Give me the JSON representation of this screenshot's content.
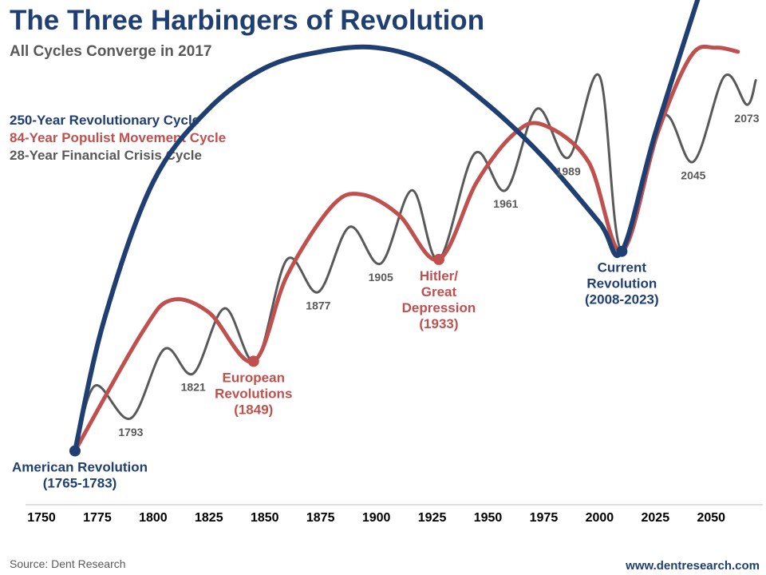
{
  "header": {
    "title": "The Three Harbingers of Revolution",
    "subtitle": "All Cycles Converge in 2017"
  },
  "footer": {
    "source": "Source: Dent Research",
    "website": "www.dentresearch.com"
  },
  "chart_data": {
    "type": "line",
    "title": "The Three Harbingers of Revolution",
    "subtitle": "All Cycles Converge in 2017",
    "xlabel": "",
    "ylabel": "",
    "xlim": [
      1750,
      2066
    ],
    "ylim": [
      0,
      100
    ],
    "x_ticks": [
      1750,
      1775,
      1800,
      1825,
      1850,
      1875,
      1900,
      1925,
      1950,
      1975,
      2000,
      2025,
      2050
    ],
    "grid": false,
    "legend_position": "top-left",
    "series": [
      {
        "name": "250-Year Revolutionary Cycle",
        "color": "#1f3f73",
        "points": [
          {
            "x": 1765,
            "y": 4
          },
          {
            "x": 1778,
            "y": 36
          },
          {
            "x": 1800,
            "y": 70
          },
          {
            "x": 1825,
            "y": 88
          },
          {
            "x": 1850,
            "y": 98
          },
          {
            "x": 1875,
            "y": 102
          },
          {
            "x": 1900,
            "y": 103
          },
          {
            "x": 1925,
            "y": 99
          },
          {
            "x": 1950,
            "y": 89
          },
          {
            "x": 1975,
            "y": 76
          },
          {
            "x": 2000,
            "y": 60
          },
          {
            "x": 2010,
            "y": 53
          },
          {
            "x": 2025,
            "y": 82
          },
          {
            "x": 2047,
            "y": 120
          }
        ]
      },
      {
        "name": "84-Year Populist Movement Cycle",
        "color": "#c0504d",
        "points": [
          {
            "x": 1765,
            "y": 4
          },
          {
            "x": 1795,
            "y": 33
          },
          {
            "x": 1808,
            "y": 41
          },
          {
            "x": 1825,
            "y": 38
          },
          {
            "x": 1845,
            "y": 26
          },
          {
            "x": 1860,
            "y": 47
          },
          {
            "x": 1880,
            "y": 64
          },
          {
            "x": 1893,
            "y": 67
          },
          {
            "x": 1910,
            "y": 62
          },
          {
            "x": 1928,
            "y": 51
          },
          {
            "x": 1945,
            "y": 70
          },
          {
            "x": 1962,
            "y": 82
          },
          {
            "x": 1975,
            "y": 84
          },
          {
            "x": 1995,
            "y": 75
          },
          {
            "x": 2010,
            "y": 53
          },
          {
            "x": 2026,
            "y": 82
          },
          {
            "x": 2041,
            "y": 101
          },
          {
            "x": 2052,
            "y": 103
          },
          {
            "x": 2062,
            "y": 102
          }
        ]
      },
      {
        "name": "28-Year Financial Crisis Cycle",
        "color": "#595959",
        "points": [
          {
            "x": 1765,
            "y": 4
          },
          {
            "x": 1774,
            "y": 20
          },
          {
            "x": 1790,
            "y": 12
          },
          {
            "x": 1805,
            "y": 29
          },
          {
            "x": 1818,
            "y": 23
          },
          {
            "x": 1832,
            "y": 39
          },
          {
            "x": 1846,
            "y": 26
          },
          {
            "x": 1860,
            "y": 51
          },
          {
            "x": 1874,
            "y": 43
          },
          {
            "x": 1888,
            "y": 59
          },
          {
            "x": 1902,
            "y": 50
          },
          {
            "x": 1916,
            "y": 68
          },
          {
            "x": 1928,
            "y": 51
          },
          {
            "x": 1944,
            "y": 77
          },
          {
            "x": 1958,
            "y": 68
          },
          {
            "x": 1972,
            "y": 88
          },
          {
            "x": 1986,
            "y": 76
          },
          {
            "x": 2000,
            "y": 96
          },
          {
            "x": 2010,
            "y": 53
          },
          {
            "x": 2028,
            "y": 86
          },
          {
            "x": 2042,
            "y": 75
          },
          {
            "x": 2056,
            "y": 96
          },
          {
            "x": 2066,
            "y": 89
          },
          {
            "x": 2070,
            "y": 95
          }
        ]
      }
    ],
    "markers": [
      {
        "x": 1765,
        "y": 4,
        "color": "#1f3f73"
      },
      {
        "x": 1845,
        "y": 26,
        "color": "#c0504d"
      },
      {
        "x": 1928,
        "y": 51,
        "color": "#c0504d"
      },
      {
        "x": 2010,
        "y": 53,
        "color": "#1f3f73"
      }
    ],
    "annotations": [
      {
        "lines": [
          "American Revolution",
          "(1765-1783)"
        ],
        "color": "#1f3f73",
        "x": 1765,
        "y": 4,
        "position": "below"
      },
      {
        "lines": [
          "European",
          "Revolutions",
          "(1849)"
        ],
        "color": "#c0504d",
        "x": 1845,
        "y": 26,
        "position": "below"
      },
      {
        "lines": [
          "Hitler/",
          "Great",
          "Depression",
          "(1933)"
        ],
        "color": "#c0504d",
        "x": 1928,
        "y": 51,
        "position": "below"
      },
      {
        "lines": [
          "Current",
          "Revolution",
          "(2008-2023)"
        ],
        "color": "#1f3f73",
        "x": 2010,
        "y": 53,
        "position": "below"
      }
    ],
    "year_labels": [
      {
        "text": "1793",
        "x": 1790,
        "y": 12
      },
      {
        "text": "1821",
        "x": 1818,
        "y": 23
      },
      {
        "text": "1877",
        "x": 1874,
        "y": 43
      },
      {
        "text": "1905",
        "x": 1902,
        "y": 50
      },
      {
        "text": "1961",
        "x": 1958,
        "y": 68
      },
      {
        "text": "1989",
        "x": 1986,
        "y": 76
      },
      {
        "text": "2045",
        "x": 2042,
        "y": 75
      },
      {
        "text": "2073",
        "x": 2066,
        "y": 89
      }
    ]
  }
}
